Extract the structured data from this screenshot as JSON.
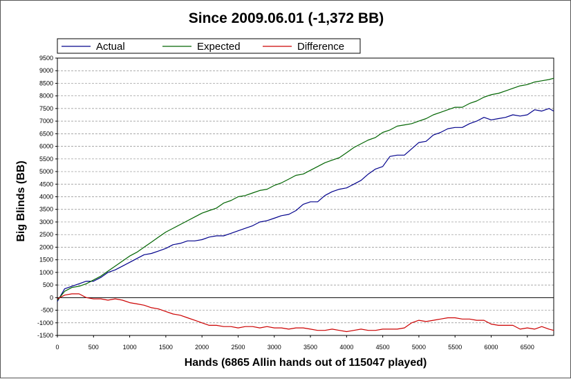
{
  "chart_data": {
    "type": "line",
    "title": "Since 2009.06.01 (-1,372 BB)",
    "xlabel": "Hands (6865 Allin hands out of 115047 played)",
    "ylabel": "Big Blinds (BB)",
    "xlim": [
      0,
      6865
    ],
    "ylim": [
      -1500,
      9500
    ],
    "xticks": [
      0,
      500,
      1000,
      1500,
      2000,
      2500,
      3000,
      3500,
      4000,
      4500,
      5000,
      5500,
      6000,
      6500
    ],
    "yticks": [
      -1500,
      -1000,
      -500,
      0,
      500,
      1000,
      1500,
      2000,
      2500,
      3000,
      3500,
      4000,
      4500,
      5000,
      5500,
      6000,
      6500,
      7000,
      7500,
      8000,
      8500,
      9000,
      9500
    ],
    "grid": "horizontal dashed",
    "legend_position": "top-left",
    "series": [
      {
        "name": "Actual",
        "color": "#00008B",
        "x": [
          0,
          100,
          200,
          300,
          400,
          500,
          600,
          700,
          800,
          900,
          1000,
          1100,
          1200,
          1300,
          1400,
          1500,
          1600,
          1700,
          1800,
          1900,
          2000,
          2100,
          2200,
          2300,
          2400,
          2500,
          2600,
          2700,
          2800,
          2900,
          3000,
          3100,
          3200,
          3300,
          3400,
          3500,
          3600,
          3700,
          3800,
          3900,
          4000,
          4100,
          4200,
          4300,
          4400,
          4500,
          4600,
          4700,
          4800,
          4900,
          5000,
          5100,
          5200,
          5300,
          5400,
          5500,
          5600,
          5700,
          5800,
          5900,
          6000,
          6100,
          6200,
          6300,
          6400,
          6500,
          6600,
          6700,
          6800,
          6865
        ],
        "values": [
          -150,
          350,
          450,
          550,
          650,
          650,
          800,
          1000,
          1100,
          1250,
          1400,
          1550,
          1700,
          1750,
          1850,
          1950,
          2100,
          2150,
          2250,
          2250,
          2300,
          2400,
          2450,
          2450,
          2550,
          2650,
          2750,
          2850,
          3000,
          3050,
          3150,
          3250,
          3300,
          3450,
          3700,
          3800,
          3800,
          4050,
          4200,
          4300,
          4350,
          4500,
          4650,
          4900,
          5100,
          5200,
          5600,
          5650,
          5650,
          5900,
          6150,
          6200,
          6450,
          6550,
          6700,
          6750,
          6750,
          6900,
          7000,
          7150,
          7050,
          7100,
          7150,
          7250,
          7200,
          7250,
          7450,
          7400,
          7500,
          7400
        ]
      },
      {
        "name": "Expected",
        "color": "#006400",
        "x": [
          0,
          100,
          200,
          300,
          400,
          500,
          600,
          700,
          800,
          900,
          1000,
          1100,
          1200,
          1300,
          1400,
          1500,
          1600,
          1700,
          1800,
          1900,
          2000,
          2100,
          2200,
          2300,
          2400,
          2500,
          2600,
          2700,
          2800,
          2900,
          3000,
          3100,
          3200,
          3300,
          3400,
          3500,
          3600,
          3700,
          3800,
          3900,
          4000,
          4100,
          4200,
          4300,
          4400,
          4500,
          4600,
          4700,
          4800,
          4900,
          5000,
          5100,
          5200,
          5300,
          5400,
          5500,
          5600,
          5700,
          5800,
          5900,
          6000,
          6100,
          6200,
          6300,
          6400,
          6500,
          6600,
          6700,
          6800,
          6865
        ],
        "values": [
          -100,
          250,
          400,
          450,
          550,
          700,
          850,
          1050,
          1250,
          1450,
          1650,
          1800,
          2000,
          2200,
          2400,
          2600,
          2750,
          2900,
          3050,
          3200,
          3350,
          3450,
          3550,
          3750,
          3850,
          4000,
          4050,
          4150,
          4250,
          4300,
          4450,
          4550,
          4700,
          4850,
          4900,
          5050,
          5200,
          5350,
          5450,
          5550,
          5750,
          5950,
          6100,
          6250,
          6350,
          6550,
          6650,
          6800,
          6850,
          6900,
          7000,
          7100,
          7250,
          7350,
          7450,
          7550,
          7550,
          7700,
          7800,
          7950,
          8050,
          8100,
          8200,
          8300,
          8400,
          8450,
          8550,
          8600,
          8650,
          8700
        ]
      },
      {
        "name": "Difference",
        "color": "#CC0000",
        "x": [
          0,
          100,
          200,
          300,
          400,
          500,
          600,
          700,
          800,
          900,
          1000,
          1100,
          1200,
          1300,
          1400,
          1500,
          1600,
          1700,
          1800,
          1900,
          2000,
          2100,
          2200,
          2300,
          2400,
          2500,
          2600,
          2700,
          2800,
          2900,
          3000,
          3100,
          3200,
          3300,
          3400,
          3500,
          3600,
          3700,
          3800,
          3900,
          4000,
          4100,
          4200,
          4300,
          4400,
          4500,
          4600,
          4700,
          4800,
          4900,
          5000,
          5100,
          5200,
          5300,
          5400,
          5500,
          5600,
          5700,
          5800,
          5900,
          6000,
          6100,
          6200,
          6300,
          6400,
          6500,
          6600,
          6700,
          6800,
          6865
        ],
        "values": [
          -50,
          100,
          150,
          150,
          0,
          -50,
          -50,
          -100,
          -50,
          -100,
          -200,
          -250,
          -300,
          -400,
          -450,
          -550,
          -650,
          -700,
          -800,
          -900,
          -1000,
          -1100,
          -1100,
          -1150,
          -1150,
          -1200,
          -1150,
          -1150,
          -1200,
          -1150,
          -1200,
          -1200,
          -1250,
          -1200,
          -1200,
          -1250,
          -1300,
          -1300,
          -1250,
          -1300,
          -1350,
          -1300,
          -1250,
          -1300,
          -1300,
          -1250,
          -1250,
          -1250,
          -1200,
          -1000,
          -900,
          -950,
          -900,
          -850,
          -800,
          -800,
          -850,
          -850,
          -900,
          -900,
          -1050,
          -1100,
          -1100,
          -1100,
          -1250,
          -1200,
          -1250,
          -1150,
          -1250,
          -1300
        ]
      }
    ]
  }
}
